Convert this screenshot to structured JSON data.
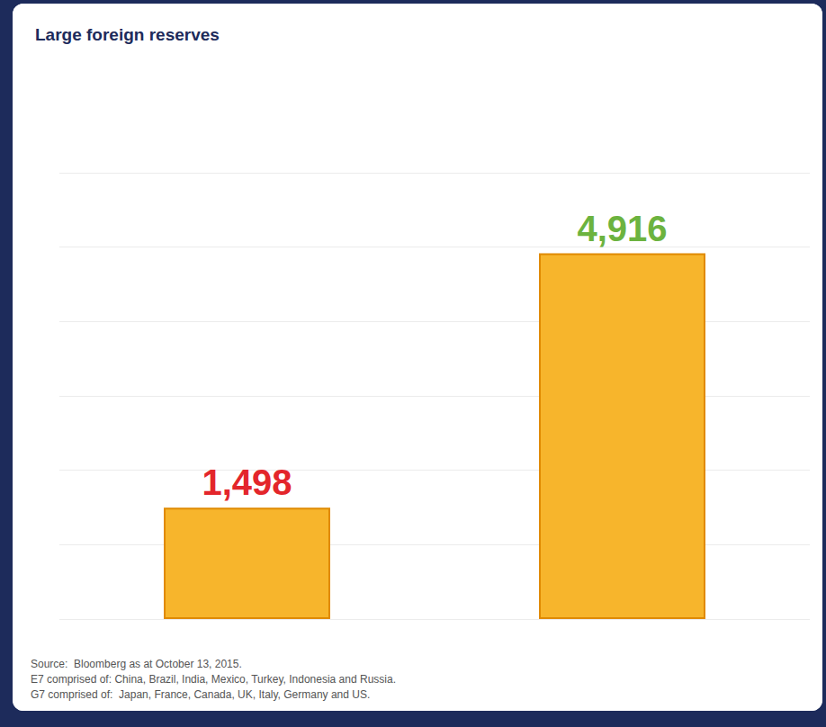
{
  "chart_data": {
    "type": "bar",
    "title": "Large foreign reserves",
    "categories": [
      null,
      null
    ],
    "values": [
      1498,
      4916
    ],
    "value_labels": [
      "1,498",
      "4,916"
    ],
    "colors": [
      "#f7b52c",
      "#f7b52c"
    ],
    "ylim": [
      0,
      6000
    ],
    "yticks": [
      0,
      1000,
      2000,
      3000,
      4000,
      5000,
      6000
    ],
    "grid": true,
    "data_labels": true,
    "tick_labels": false,
    "annotations": [
      "Source:  Bloomberg as at October 13, 2015.",
      "E7 comprised of: China, Brazil, India, Mexico, Turkey, Indonesia and Russia.",
      "G7 comprised of:  Japan, France, Canada, UK, Italy, Germany and US."
    ]
  }
}
